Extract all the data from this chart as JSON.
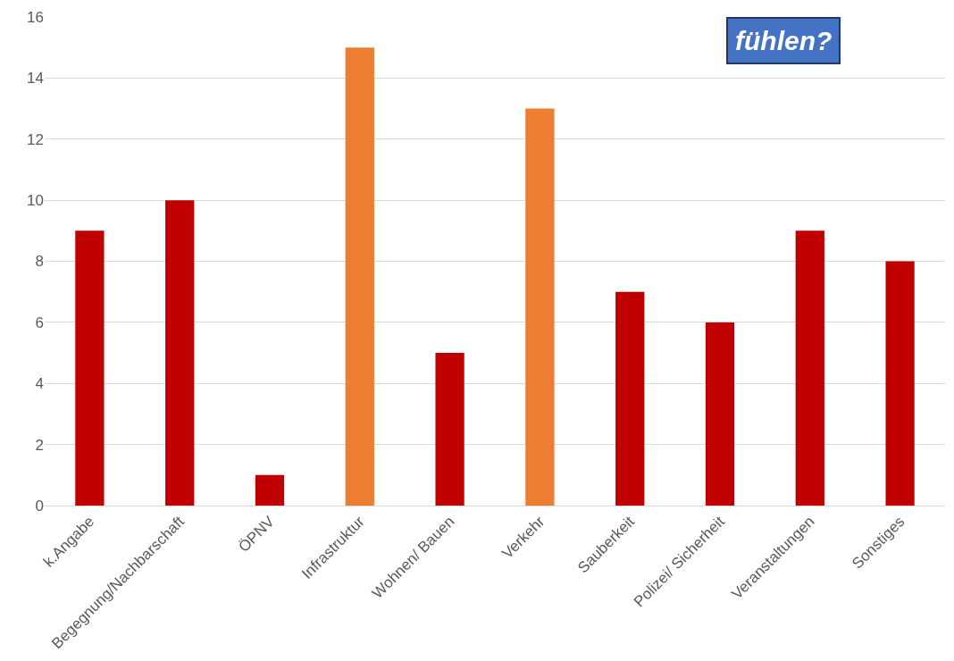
{
  "chart_data": {
    "type": "bar",
    "categories": [
      "k.Angabe",
      "Begegnung/Nachbarschaft",
      "ÖPNV",
      "Infrastruktur",
      "Wohnen/ Bauen",
      "Verkehr",
      "Sauberkeit",
      "Polizei/ Sicherheit",
      "Veranstaltungen",
      "Sonstiges"
    ],
    "values": [
      9,
      10,
      1,
      15,
      5,
      13,
      7,
      6,
      9,
      8
    ],
    "colors": [
      "#c00000",
      "#c00000",
      "#c00000",
      "#ed7d31",
      "#c00000",
      "#ed7d31",
      "#c00000",
      "#c00000",
      "#c00000",
      "#c00000"
    ],
    "ylim": [
      0,
      16
    ],
    "yticks": [
      0,
      2,
      4,
      6,
      8,
      10,
      12,
      14,
      16
    ],
    "grid": "y",
    "legend": false,
    "annotations": [
      "fühlen?"
    ]
  }
}
